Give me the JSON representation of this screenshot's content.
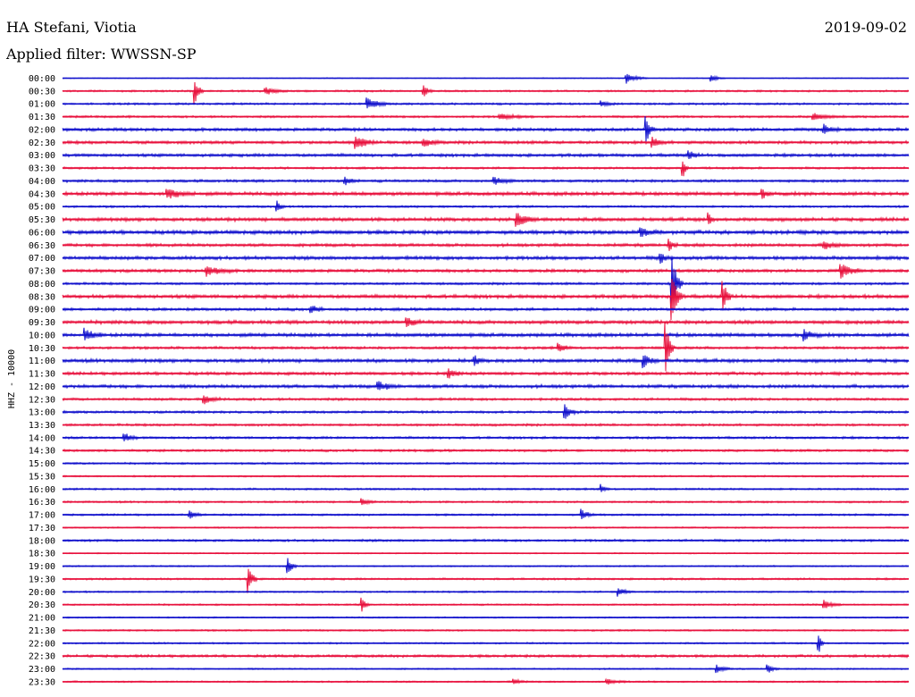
{
  "header": {
    "station": "HA Stefani, Viotia",
    "date": "2019-09-02",
    "filter": "Applied filter: WWSSN-SP"
  },
  "chart_data": {
    "type": "line",
    "title": "HA Stefani, Viotia",
    "subtitle": "Applied filter: WWSSN-SP",
    "ylabel": "HHZ - 10000",
    "xlabel": "",
    "grid": false,
    "colors": [
      "#1010cc",
      "#e8103c"
    ],
    "row_labels": [
      "00:00",
      "00:30",
      "01:00",
      "01:30",
      "02:00",
      "02:30",
      "03:00",
      "03:30",
      "04:00",
      "04:30",
      "05:00",
      "05:30",
      "06:00",
      "06:30",
      "07:00",
      "07:30",
      "08:00",
      "08:30",
      "09:00",
      "09:30",
      "10:00",
      "10:30",
      "11:00",
      "11:30",
      "12:00",
      "12:30",
      "13:00",
      "13:30",
      "14:00",
      "14:30",
      "15:00",
      "15:30",
      "16:00",
      "16:30",
      "17:00",
      "17:30",
      "18:00",
      "18:30",
      "19:00",
      "19:30",
      "20:00",
      "20:30",
      "21:00",
      "21:30",
      "22:00",
      "22:30",
      "23:00",
      "23:30"
    ],
    "row_noise": [
      0.4,
      0.8,
      0.9,
      0.9,
      1.3,
      1.3,
      1.3,
      0.9,
      1.1,
      1.5,
      0.9,
      1.5,
      1.6,
      1.3,
      1.5,
      1.3,
      1.0,
      1.5,
      1.2,
      1.5,
      1.5,
      1.1,
      1.5,
      1.3,
      1.4,
      1.1,
      1.0,
      1.0,
      1.0,
      1.0,
      0.8,
      0.7,
      0.8,
      0.8,
      0.8,
      0.6,
      1.0,
      0.5,
      0.6,
      0.8,
      0.7,
      0.7,
      0.6,
      0.7,
      0.7,
      1.1,
      0.6,
      0.7
    ],
    "events": [
      {
        "row": 0,
        "minute": 20.0,
        "amplitude": 6,
        "duration": 0.7
      },
      {
        "row": 0,
        "minute": 23.0,
        "amplitude": 4,
        "duration": 0.5
      },
      {
        "row": 1,
        "minute": 4.7,
        "amplitude": 14,
        "duration": 0.3
      },
      {
        "row": 1,
        "minute": 7.2,
        "amplitude": 4,
        "duration": 0.8
      },
      {
        "row": 1,
        "minute": 12.8,
        "amplitude": 7,
        "duration": 0.3
      },
      {
        "row": 2,
        "minute": 10.8,
        "amplitude": 7,
        "duration": 0.8
      },
      {
        "row": 2,
        "minute": 19.1,
        "amplitude": 3,
        "duration": 0.6
      },
      {
        "row": 3,
        "minute": 15.5,
        "amplitude": 3,
        "duration": 1.2
      },
      {
        "row": 3,
        "minute": 26.6,
        "amplitude": 4,
        "duration": 1.0
      },
      {
        "row": 4,
        "minute": 20.7,
        "amplitude": 15,
        "duration": 0.3
      },
      {
        "row": 4,
        "minute": 27.0,
        "amplitude": 5,
        "duration": 0.6
      },
      {
        "row": 5,
        "minute": 10.4,
        "amplitude": 8,
        "duration": 0.8
      },
      {
        "row": 5,
        "minute": 12.8,
        "amplitude": 4,
        "duration": 0.8
      },
      {
        "row": 5,
        "minute": 20.9,
        "amplitude": 6,
        "duration": 0.5
      },
      {
        "row": 6,
        "minute": 22.2,
        "amplitude": 6,
        "duration": 0.4
      },
      {
        "row": 7,
        "minute": 22.0,
        "amplitude": 13,
        "duration": 0.2
      },
      {
        "row": 8,
        "minute": 10.0,
        "amplitude": 5,
        "duration": 0.5
      },
      {
        "row": 8,
        "minute": 15.3,
        "amplitude": 4,
        "duration": 0.8
      },
      {
        "row": 9,
        "minute": 3.7,
        "amplitude": 6,
        "duration": 1.0
      },
      {
        "row": 9,
        "minute": 24.8,
        "amplitude": 5,
        "duration": 0.4
      },
      {
        "row": 10,
        "minute": 7.6,
        "amplitude": 6,
        "duration": 0.3
      },
      {
        "row": 11,
        "minute": 16.1,
        "amplitude": 8,
        "duration": 0.8
      },
      {
        "row": 11,
        "minute": 22.9,
        "amplitude": 7,
        "duration": 0.2
      },
      {
        "row": 12,
        "minute": 20.5,
        "amplitude": 5,
        "duration": 0.8
      },
      {
        "row": 13,
        "minute": 21.5,
        "amplitude": 7,
        "duration": 0.3
      },
      {
        "row": 13,
        "minute": 27.0,
        "amplitude": 4,
        "duration": 0.8
      },
      {
        "row": 14,
        "minute": 21.2,
        "amplitude": 7,
        "duration": 0.3
      },
      {
        "row": 15,
        "minute": 5.1,
        "amplitude": 6,
        "duration": 1.0
      },
      {
        "row": 15,
        "minute": 27.6,
        "amplitude": 8,
        "duration": 0.8
      },
      {
        "row": 16,
        "minute": 21.6,
        "amplitude": 35,
        "duration": 0.4
      },
      {
        "row": 17,
        "minute": 21.6,
        "amplitude": 30,
        "duration": 0.4
      },
      {
        "row": 17,
        "minute": 23.4,
        "amplitude": 22,
        "duration": 0.3
      },
      {
        "row": 18,
        "minute": 8.8,
        "amplitude": 5,
        "duration": 0.5
      },
      {
        "row": 19,
        "minute": 12.2,
        "amplitude": 5,
        "duration": 0.6
      },
      {
        "row": 20,
        "minute": 0.8,
        "amplitude": 7,
        "duration": 0.7
      },
      {
        "row": 20,
        "minute": 26.3,
        "amplitude": 6,
        "duration": 0.6
      },
      {
        "row": 21,
        "minute": 17.6,
        "amplitude": 5,
        "duration": 0.5
      },
      {
        "row": 21,
        "minute": 21.4,
        "amplitude": 30,
        "duration": 0.3
      },
      {
        "row": 22,
        "minute": 20.6,
        "amplitude": 8,
        "duration": 0.5
      },
      {
        "row": 22,
        "minute": 14.6,
        "amplitude": 6,
        "duration": 0.3
      },
      {
        "row": 23,
        "minute": 13.7,
        "amplitude": 5,
        "duration": 0.5
      },
      {
        "row": 24,
        "minute": 11.2,
        "amplitude": 5,
        "duration": 0.8
      },
      {
        "row": 25,
        "minute": 5.0,
        "amplitude": 6,
        "duration": 0.6
      },
      {
        "row": 26,
        "minute": 17.8,
        "amplitude": 8,
        "duration": 0.5
      },
      {
        "row": 28,
        "minute": 2.2,
        "amplitude": 5,
        "duration": 0.5
      },
      {
        "row": 32,
        "minute": 19.1,
        "amplitude": 5,
        "duration": 0.3
      },
      {
        "row": 33,
        "minute": 10.6,
        "amplitude": 4,
        "duration": 0.5
      },
      {
        "row": 34,
        "minute": 18.4,
        "amplitude": 6,
        "duration": 0.5
      },
      {
        "row": 34,
        "minute": 4.5,
        "amplitude": 4,
        "duration": 0.6
      },
      {
        "row": 38,
        "minute": 8.0,
        "amplitude": 10,
        "duration": 0.3
      },
      {
        "row": 39,
        "minute": 6.6,
        "amplitude": 16,
        "duration": 0.3
      },
      {
        "row": 40,
        "minute": 19.7,
        "amplitude": 5,
        "duration": 0.6
      },
      {
        "row": 41,
        "minute": 10.6,
        "amplitude": 8,
        "duration": 0.3
      },
      {
        "row": 41,
        "minute": 27.0,
        "amplitude": 5,
        "duration": 0.6
      },
      {
        "row": 44,
        "minute": 26.8,
        "amplitude": 14,
        "duration": 0.2
      },
      {
        "row": 46,
        "minute": 23.2,
        "amplitude": 4,
        "duration": 0.6
      },
      {
        "row": 46,
        "minute": 25.0,
        "amplitude": 5,
        "duration": 0.4
      },
      {
        "row": 47,
        "minute": 16.0,
        "amplitude": 3,
        "duration": 0.5
      },
      {
        "row": 47,
        "minute": 19.3,
        "amplitude": 3,
        "duration": 0.8
      }
    ]
  }
}
